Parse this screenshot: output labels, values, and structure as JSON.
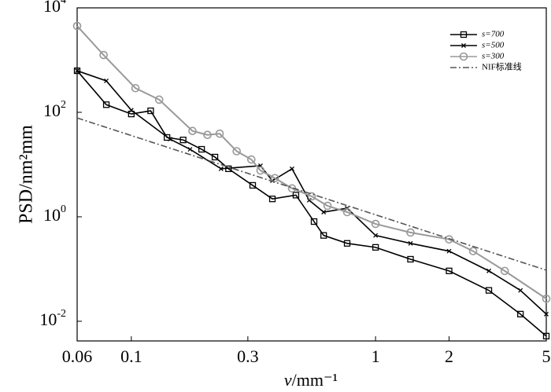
{
  "chart_data": {
    "type": "line",
    "log_x": true,
    "log_y": true,
    "legend": "upper right",
    "ylabel": "PSD/nm²mm",
    "xlabel": {
      "symbol": "v",
      "unit": "/mm⁻¹"
    },
    "xlim": [
      0.06,
      5
    ],
    "ylim": [
      0.0042,
      10000
    ],
    "xticks": [
      0.06,
      0.1,
      0.3,
      1,
      2,
      5
    ],
    "yticks": [
      {
        "value": 10000,
        "label": "10",
        "exponent": "4"
      },
      {
        "value": 100,
        "label": "10",
        "exponent": "2"
      },
      {
        "value": 1,
        "label": "10",
        "exponent": "0"
      },
      {
        "value": 0.01,
        "label": "10",
        "exponent": "-2"
      }
    ],
    "series": [
      {
        "name": "s=700",
        "color": "#000000",
        "marker": "square",
        "dash": "none",
        "x": [
          0.06,
          0.079,
          0.1,
          0.12,
          0.14,
          0.163,
          0.194,
          0.22,
          0.25,
          0.314,
          0.378,
          0.472,
          0.56,
          0.613,
          0.765,
          1,
          1.39,
          2,
          2.91,
          3.92,
          5
        ],
        "values": [
          625,
          140,
          93,
          107,
          33,
          29.6,
          19.6,
          13.9,
          8.3,
          4,
          2.2,
          2.6,
          0.81,
          0.44,
          0.31,
          0.26,
          0.154,
          0.092,
          0.039,
          0.0137,
          0.0052
        ]
      },
      {
        "name": "s=500",
        "color": "#000000",
        "marker": "x",
        "dash": "none",
        "x": [
          0.06,
          0.079,
          0.1,
          0.144,
          0.174,
          0.233,
          0.338,
          0.378,
          0.455,
          0.535,
          0.613,
          0.765,
          1,
          1.39,
          2,
          2.91,
          3.92,
          5
        ],
        "values": [
          625,
          400,
          110,
          30.7,
          19.6,
          8.3,
          9.5,
          4.9,
          8.3,
          2.07,
          1.23,
          1.46,
          0.44,
          0.31,
          0.22,
          0.092,
          0.039,
          0.0137
        ]
      },
      {
        "name": "s=300",
        "color": "#999999",
        "marker": "circle",
        "dash": "none",
        "x": [
          0.06,
          0.077,
          0.104,
          0.13,
          0.178,
          0.205,
          0.23,
          0.27,
          0.31,
          0.338,
          0.387,
          0.455,
          0.548,
          0.636,
          0.765,
          1,
          1.39,
          2,
          2.51,
          3.38,
          5
        ],
        "values": [
          4500,
          1250,
          290,
          175,
          44,
          37,
          39,
          18,
          12.5,
          7.7,
          5.5,
          3.5,
          2.46,
          1.62,
          1.23,
          0.73,
          0.5,
          0.37,
          0.22,
          0.092,
          0.027
        ]
      },
      {
        "name": "NIF标准线",
        "color": "#555555",
        "marker": "none",
        "dash": "8 3 2 3",
        "x": [
          0.06,
          5
        ],
        "values": [
          78,
          0.095
        ]
      }
    ]
  }
}
